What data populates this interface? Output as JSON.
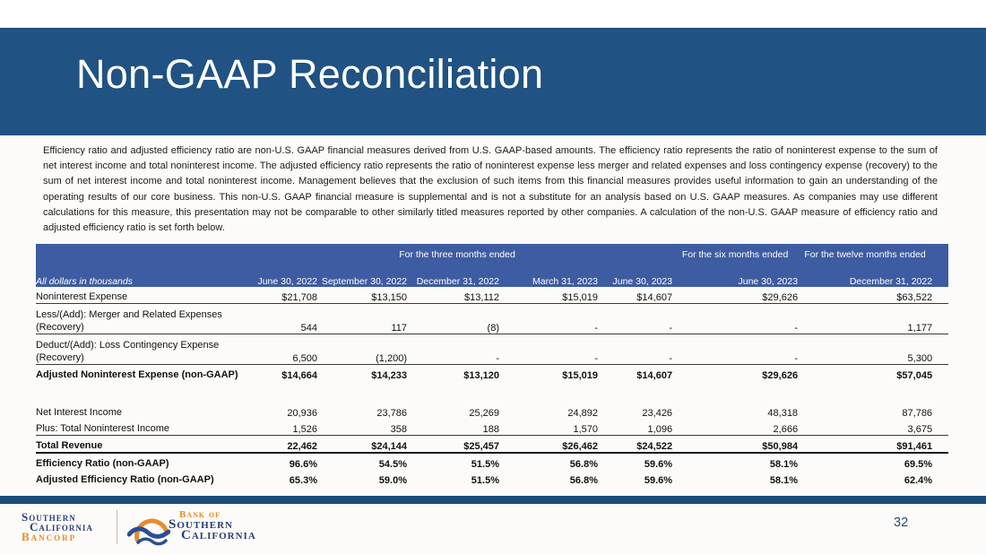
{
  "header": {
    "title": "Non-GAAP Reconciliation"
  },
  "intro": {
    "text": "Efficiency ratio and adjusted efficiency ratio are non-U.S. GAAP financial measures derived from U.S. GAAP-based amounts. The efficiency ratio represents the ratio of noninterest expense to the sum of net interest income and total noninterest income. The adjusted efficiency ratio represents the ratio of noninterest expense less merger and related expenses and loss contingency expense (recovery) to the sum of net interest income and total noninterest income. Management believes that the exclusion of such items from this financial measures provides useful information to gain an understanding of the operating results of our core business. This non-U.S. GAAP financial measure is supplemental and is not a substitute for an analysis based on U.S. GAAP measures. As companies may use different calculations for this measure, this presentation may not be comparable to other similarly titled measures reported by other companies. A calculation of the non-U.S. GAAP measure of efficiency ratio and adjusted efficiency ratio is set forth below."
  },
  "table": {
    "corner_label": "All dollars in thousands",
    "group_headers": [
      {
        "label": "For the three months ended",
        "span": 5
      },
      {
        "label": "For the six months ended",
        "span": 1
      },
      {
        "label": "For the twelve months ended",
        "span": 1
      }
    ],
    "column_headers": [
      "June 30, 2022",
      "September 30, 2022",
      "December 31, 2022",
      "March 31, 2023",
      "June 30, 2023",
      "June 30, 2023",
      "December 31, 2022"
    ],
    "rows": [
      {
        "label": "Noninterest Expense",
        "values": [
          "$21,708",
          "$13,150",
          "$13,112",
          "$15,019",
          "$14,607",
          "$29,626",
          "$63,522"
        ],
        "border": "thin",
        "bold": false,
        "lines": 1,
        "gap_after": false
      },
      {
        "label": "Less/(Add): Merger and Related Expenses (Recovery)",
        "values": [
          "544",
          "117",
          "(8)",
          "-",
          "-",
          "-",
          "1,177"
        ],
        "border": "thin",
        "bold": false,
        "lines": 2,
        "gap_after": false
      },
      {
        "label": "Deduct/(Add): Loss Contingency Expense (Recovery)",
        "values": [
          "6,500",
          "(1,200)",
          "-",
          "-",
          "-",
          "-",
          "5,300"
        ],
        "border": "thin",
        "bold": false,
        "lines": 2,
        "gap_after": false
      },
      {
        "label": "Adjusted Noninterest Expense (non-GAAP)",
        "values": [
          "$14,664",
          "$14,233",
          "$13,120",
          "$15,019",
          "$14,607",
          "$29,626",
          "$57,045"
        ],
        "border": "none",
        "bold": true,
        "lines": 1,
        "gap_after": true
      },
      {
        "label": "Net Interest Income",
        "values": [
          "20,936",
          "23,786",
          "25,269",
          "24,892",
          "23,426",
          "48,318",
          "87,786"
        ],
        "border": "none",
        "bold": false,
        "lines": 1,
        "gap_after": false
      },
      {
        "label": "Plus: Total Noninterest Income",
        "values": [
          "1,526",
          "358",
          "188",
          "1,570",
          "1,096",
          "2,666",
          "3,675"
        ],
        "border": "thin",
        "bold": false,
        "lines": 1,
        "gap_after": false
      },
      {
        "label": "Total Revenue",
        "values": [
          "22,462",
          "$24,144",
          "$25,457",
          "$26,462",
          "$24,522",
          "$50,984",
          "$91,461"
        ],
        "border": "thick",
        "bold": true,
        "lines": 1,
        "gap_after": false
      },
      {
        "label": "Efficiency Ratio (non-GAAP)",
        "values": [
          "96.6%",
          "54.5%",
          "51.5%",
          "56.8%",
          "59.6%",
          "58.1%",
          "69.5%"
        ],
        "border": "none",
        "bold": true,
        "lines": 1,
        "gap_after": false
      },
      {
        "label": "Adjusted Efficiency Ratio (non-GAAP)",
        "values": [
          "65.3%",
          "59.0%",
          "51.5%",
          "56.8%",
          "59.6%",
          "58.1%",
          "62.4%"
        ],
        "border": "none",
        "bold": true,
        "lines": 1,
        "gap_after": false
      }
    ]
  },
  "footer": {
    "page_number": "32",
    "bancorp_logo": {
      "line1": "Southern",
      "line2": "California",
      "line3": "Bancorp"
    },
    "bank_logo": {
      "top": "Bank of",
      "middle": "Southern",
      "bottom": "California"
    },
    "wave_icon": "bank-wave-logo"
  },
  "colors": {
    "banner": "#205283",
    "tableHeader": "#3E5CA1",
    "rule": "#1E4C78",
    "logoNavy": "#2A3E74",
    "logoOrange": "#E98A2B"
  }
}
